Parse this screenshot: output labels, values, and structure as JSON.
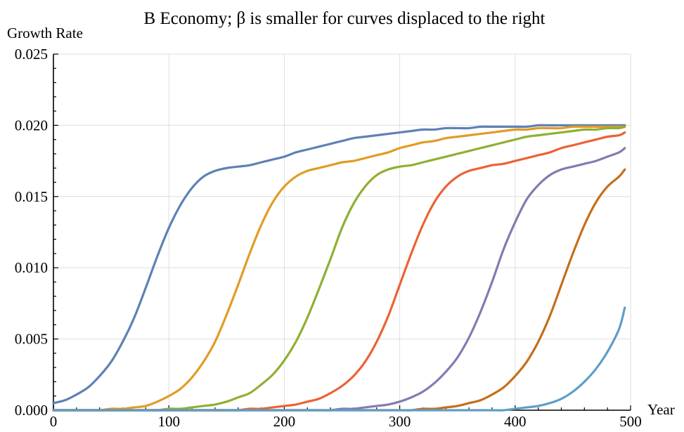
{
  "chart_data": {
    "type": "line",
    "title": "B Economy; β is smaller for curves displaced to the right",
    "xlabel": "Year",
    "ylabel": "Growth Rate",
    "xlim": [
      0,
      500
    ],
    "ylim": [
      0,
      0.025
    ],
    "x_ticks": [
      0,
      100,
      200,
      300,
      400,
      500
    ],
    "x_tick_labels": [
      "0",
      "100",
      "200",
      "300",
      "400",
      "500"
    ],
    "y_ticks": [
      0,
      0.005,
      0.01,
      0.015,
      0.02,
      0.025
    ],
    "y_tick_labels": [
      "0.000",
      "0.005",
      "0.010",
      "0.015",
      "0.020",
      "0.025"
    ],
    "grid": true,
    "legend": "none",
    "x": [
      0,
      10,
      20,
      30,
      40,
      50,
      60,
      70,
      80,
      90,
      100,
      110,
      120,
      130,
      140,
      150,
      160,
      170,
      180,
      190,
      200,
      210,
      220,
      230,
      240,
      250,
      260,
      270,
      280,
      290,
      300,
      310,
      320,
      330,
      340,
      350,
      360,
      370,
      380,
      390,
      400,
      410,
      420,
      430,
      440,
      450,
      460,
      470,
      480,
      490,
      495
    ],
    "series": [
      {
        "color": "#5e81b5",
        "values": [
          0.0005,
          0.0007,
          0.0011,
          0.0016,
          0.0024,
          0.0034,
          0.0048,
          0.0065,
          0.0086,
          0.0108,
          0.0128,
          0.0144,
          0.0156,
          0.0164,
          0.0168,
          0.017,
          0.0171,
          0.0172,
          0.0174,
          0.0176,
          0.0178,
          0.0181,
          0.0183,
          0.0185,
          0.0187,
          0.0189,
          0.0191,
          0.0192,
          0.0193,
          0.0194,
          0.0195,
          0.0196,
          0.0197,
          0.0197,
          0.0198,
          0.0198,
          0.0198,
          0.0199,
          0.0199,
          0.0199,
          0.0199,
          0.0199,
          0.02,
          0.02,
          0.02,
          0.02,
          0.02,
          0.02,
          0.02,
          0.02,
          0.02
        ]
      },
      {
        "color": "#e19c24",
        "values": [
          0.0,
          0.0,
          0.0,
          0.0,
          0.0,
          0.0001,
          0.0001,
          0.0002,
          0.0003,
          0.0006,
          0.001,
          0.0015,
          0.0023,
          0.0034,
          0.0048,
          0.0067,
          0.0088,
          0.011,
          0.013,
          0.0146,
          0.0157,
          0.0164,
          0.0168,
          0.017,
          0.0172,
          0.0174,
          0.0175,
          0.0177,
          0.0179,
          0.0181,
          0.0184,
          0.0186,
          0.0188,
          0.0189,
          0.0191,
          0.0192,
          0.0193,
          0.0194,
          0.0195,
          0.0196,
          0.0197,
          0.0197,
          0.0198,
          0.0198,
          0.0198,
          0.0199,
          0.0199,
          0.0199,
          0.0199,
          0.0199,
          0.0199
        ]
      },
      {
        "color": "#8fb032",
        "values": [
          0.0,
          0.0,
          0.0,
          0.0,
          0.0,
          0.0,
          0.0,
          0.0,
          0.0,
          0.0,
          0.0001,
          0.0001,
          0.0002,
          0.0003,
          0.0004,
          0.0006,
          0.0009,
          0.0012,
          0.0018,
          0.0025,
          0.0035,
          0.0048,
          0.0065,
          0.0085,
          0.0106,
          0.0128,
          0.0145,
          0.0157,
          0.0165,
          0.0169,
          0.0171,
          0.0172,
          0.0174,
          0.0176,
          0.0178,
          0.018,
          0.0182,
          0.0184,
          0.0186,
          0.0188,
          0.019,
          0.0192,
          0.0193,
          0.0194,
          0.0195,
          0.0196,
          0.0197,
          0.0197,
          0.0198,
          0.0198,
          0.0199
        ]
      },
      {
        "color": "#eb6235",
        "values": [
          0.0,
          0.0,
          0.0,
          0.0,
          0.0,
          0.0,
          0.0,
          0.0,
          0.0,
          0.0,
          0.0,
          0.0,
          0.0,
          0.0,
          0.0,
          0.0,
          0.0,
          0.0001,
          0.0001,
          0.0002,
          0.0003,
          0.0004,
          0.0006,
          0.0008,
          0.0012,
          0.0017,
          0.0024,
          0.0034,
          0.0048,
          0.0066,
          0.0088,
          0.011,
          0.013,
          0.0146,
          0.0157,
          0.0164,
          0.0168,
          0.017,
          0.0172,
          0.0173,
          0.0175,
          0.0177,
          0.0179,
          0.0181,
          0.0184,
          0.0186,
          0.0188,
          0.019,
          0.0192,
          0.0193,
          0.0195
        ]
      },
      {
        "color": "#8778b3",
        "values": [
          0.0,
          0.0,
          0.0,
          0.0,
          0.0,
          0.0,
          0.0,
          0.0,
          0.0,
          0.0,
          0.0,
          0.0,
          0.0,
          0.0,
          0.0,
          0.0,
          0.0,
          0.0,
          0.0,
          0.0,
          0.0,
          0.0,
          0.0,
          0.0,
          0.0,
          0.0001,
          0.0001,
          0.0002,
          0.0003,
          0.0004,
          0.0006,
          0.0009,
          0.0013,
          0.0019,
          0.0027,
          0.0037,
          0.0051,
          0.0069,
          0.009,
          0.0113,
          0.0132,
          0.0148,
          0.0158,
          0.0165,
          0.0169,
          0.0171,
          0.0173,
          0.0175,
          0.0178,
          0.0181,
          0.0184
        ]
      },
      {
        "color": "#c56e1a",
        "values": [
          0.0,
          0.0,
          0.0,
          0.0,
          0.0,
          0.0,
          0.0,
          0.0,
          0.0,
          0.0,
          0.0,
          0.0,
          0.0,
          0.0,
          0.0,
          0.0,
          0.0,
          0.0,
          0.0,
          0.0,
          0.0,
          0.0,
          0.0,
          0.0,
          0.0,
          0.0,
          0.0,
          0.0,
          0.0,
          0.0,
          0.0,
          0.0,
          0.0001,
          0.0001,
          0.0002,
          0.0003,
          0.0005,
          0.0007,
          0.0011,
          0.0016,
          0.0024,
          0.0034,
          0.0048,
          0.0066,
          0.0088,
          0.011,
          0.013,
          0.0146,
          0.0157,
          0.0164,
          0.0169
        ]
      },
      {
        "color": "#5d9ec7",
        "values": [
          0.0,
          0.0,
          0.0,
          0.0,
          0.0,
          0.0,
          0.0,
          0.0,
          0.0,
          0.0,
          0.0,
          0.0,
          0.0,
          0.0,
          0.0,
          0.0,
          0.0,
          0.0,
          0.0,
          0.0,
          0.0,
          0.0,
          0.0,
          0.0,
          0.0,
          0.0,
          0.0,
          0.0,
          0.0,
          0.0,
          0.0,
          0.0,
          0.0,
          0.0,
          0.0,
          0.0,
          0.0,
          0.0,
          0.0,
          0.0,
          0.0001,
          0.0002,
          0.0003,
          0.0005,
          0.0008,
          0.0013,
          0.002,
          0.0029,
          0.0041,
          0.0057,
          0.0072
        ]
      }
    ]
  }
}
